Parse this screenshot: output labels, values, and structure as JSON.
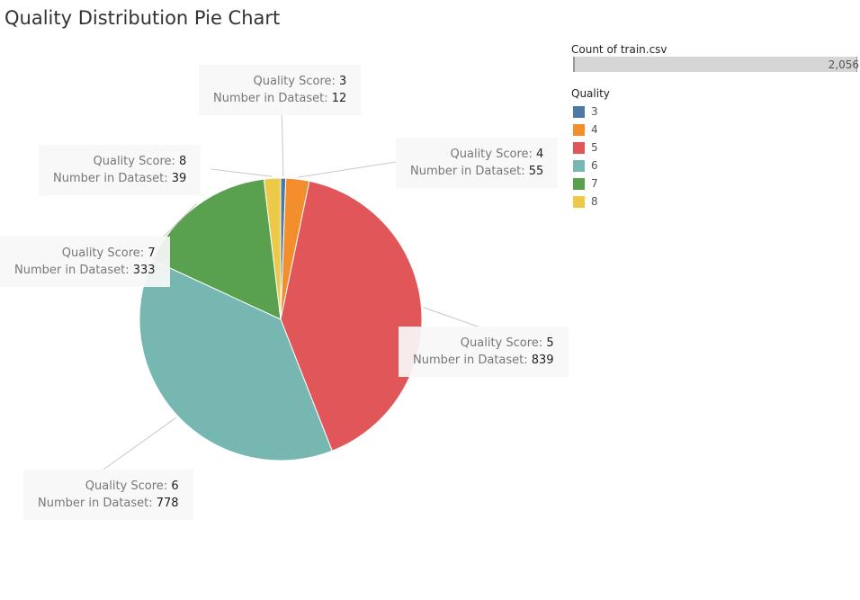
{
  "title": "Quality Distribution Pie Chart",
  "count": {
    "title": "Count of train.csv",
    "value": "2,056"
  },
  "legend": {
    "title": "Quality",
    "items": [
      {
        "label": "3",
        "color": "#4e79a7"
      },
      {
        "label": "4",
        "color": "#f28e2b"
      },
      {
        "label": "5",
        "color": "#e15759"
      },
      {
        "label": "6",
        "color": "#76b7b2"
      },
      {
        "label": "7",
        "color": "#59a14f"
      },
      {
        "label": "8",
        "color": "#edc948"
      }
    ]
  },
  "callout_labels": {
    "score": "Quality Score:",
    "count": "Number in Dataset:"
  },
  "chart_data": {
    "type": "pie",
    "title": "Quality Distribution Pie Chart",
    "categories": [
      "3",
      "4",
      "5",
      "6",
      "7",
      "8"
    ],
    "values": [
      12,
      55,
      839,
      778,
      333,
      39
    ],
    "colors": [
      "#4e79a7",
      "#f28e2b",
      "#e15759",
      "#76b7b2",
      "#59a14f",
      "#edc948"
    ],
    "total": 2056
  }
}
